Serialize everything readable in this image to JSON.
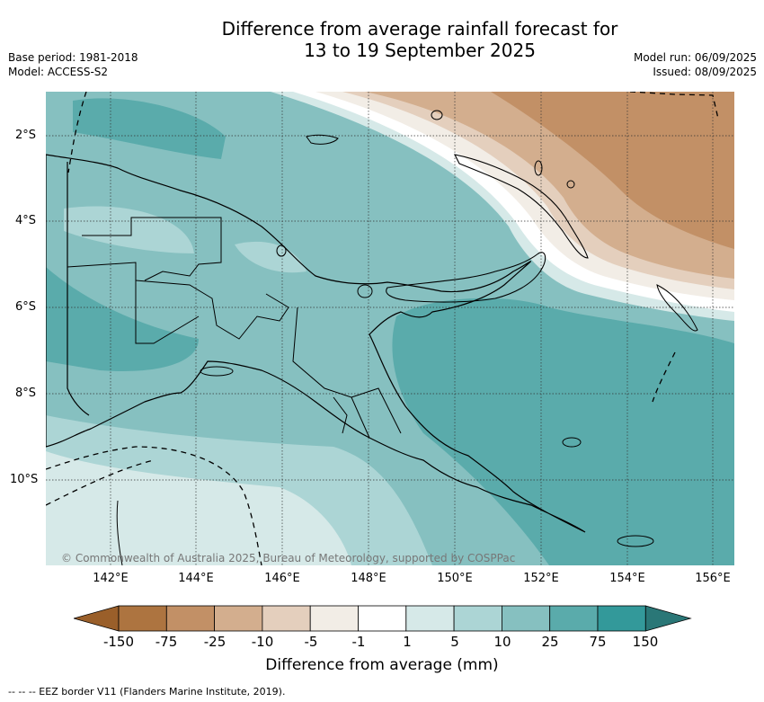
{
  "title_line1": "Difference from average rainfall forecast for",
  "title_line2": "13 to 19 September 2025",
  "base_period": "Base period: 1981-2018",
  "model": "Model: ACCESS-S2",
  "model_run": "Model run: 06/09/2025",
  "issued": "Issued: 08/09/2025",
  "copyright": "© Commonwealth of Australia 2025, Bureau of Meteorology, supported by COSPPac",
  "lat_labels": [
    "2°S",
    "4°S",
    "6°S",
    "8°S",
    "10°S"
  ],
  "lon_labels": [
    "142°E",
    "144°E",
    "146°E",
    "148°E",
    "150°E",
    "152°E",
    "154°E",
    "156°E"
  ],
  "colorbar": {
    "ticks": [
      "-150",
      "-75",
      "-25",
      "-10",
      "-5",
      "-1",
      "1",
      "5",
      "10",
      "25",
      "75",
      "150"
    ],
    "colors": [
      "#9a5f2a",
      "#ad7440",
      "#c29066",
      "#d3ae8e",
      "#e4cfbd",
      "#f2ede6",
      "#ffffff",
      "#d6e9e8",
      "#acd5d5",
      "#86c0c0",
      "#5aabab",
      "#33999a",
      "#2a7777"
    ],
    "label": "Difference from average (mm)"
  },
  "footer": "-- -- -- EEZ border V11 (Flanders Marine Institute, 2019)."
}
